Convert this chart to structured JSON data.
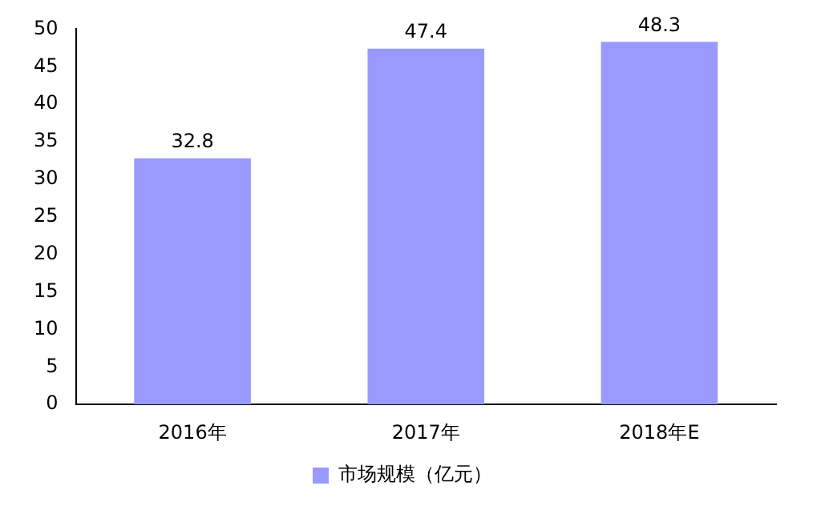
{
  "chart_data": {
    "type": "bar",
    "categories": [
      "2016年",
      "2017年",
      "2018年E"
    ],
    "series": [
      {
        "name": "市场规模（亿元）",
        "color": "#9999ff",
        "values": [
          32.8,
          47.4,
          48.3
        ]
      }
    ],
    "ylim": [
      0,
      50
    ],
    "yticks": [
      0,
      5,
      10,
      15,
      20,
      25,
      30,
      35,
      40,
      45,
      50
    ],
    "grid": false,
    "legend": "bottom",
    "data_labels": true
  }
}
